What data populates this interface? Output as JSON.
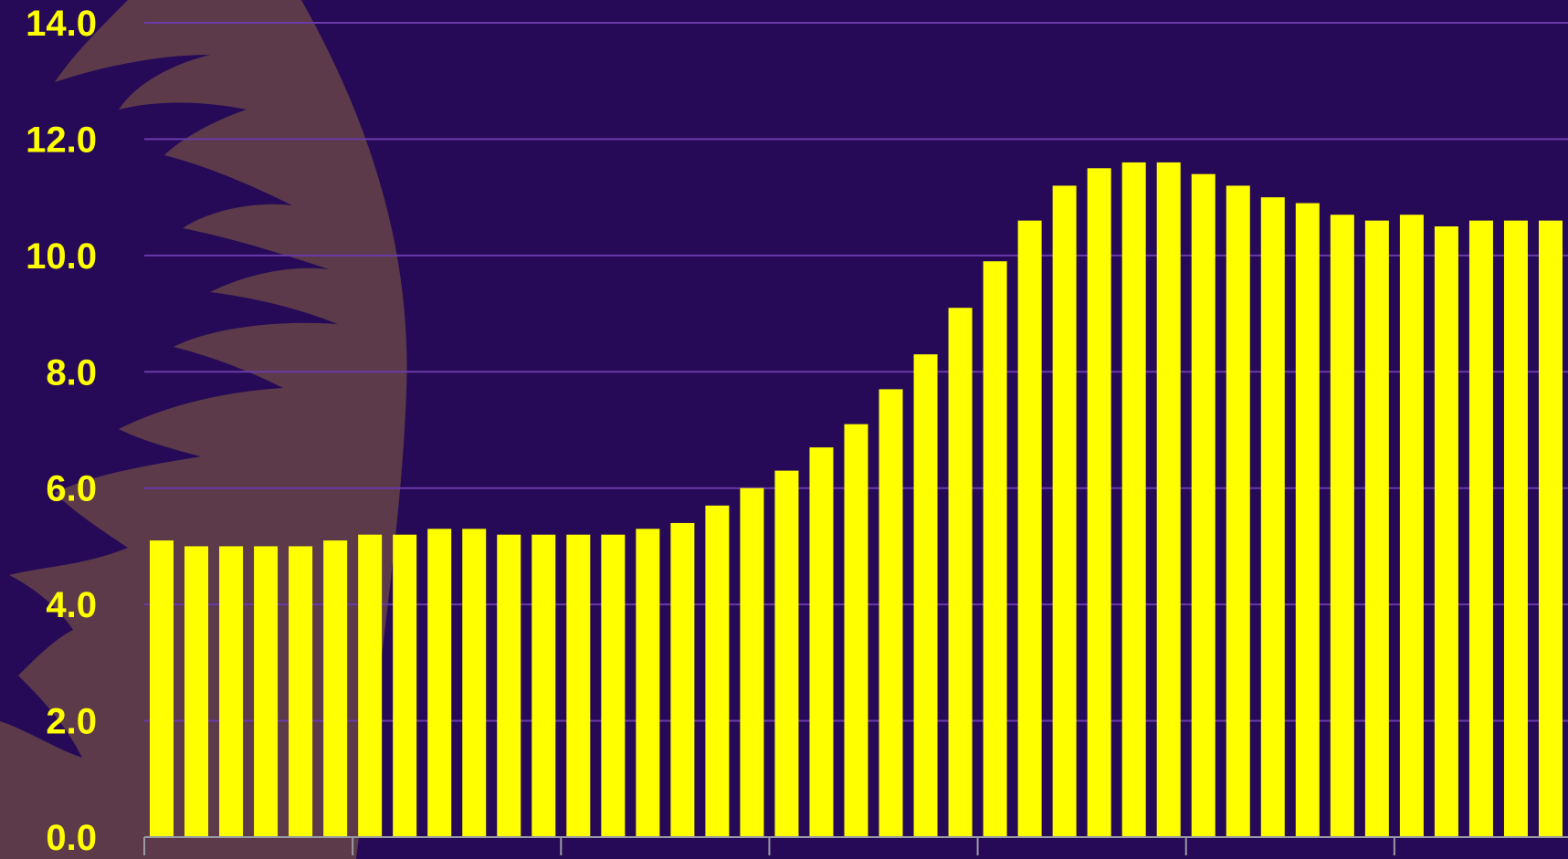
{
  "chart_data": {
    "type": "bar",
    "title": "",
    "xlabel": "",
    "ylabel": "",
    "ylim": [
      0,
      14
    ],
    "y_ticks": [
      "0.0",
      "2.0",
      "4.0",
      "6.0",
      "8.0",
      "10.0",
      "12.0",
      "14.0"
    ],
    "grid": true,
    "x_tick_every": 6,
    "values": [
      5.1,
      5.0,
      5.0,
      5.0,
      5.0,
      5.1,
      5.2,
      5.2,
      5.3,
      5.3,
      5.2,
      5.2,
      5.2,
      5.2,
      5.3,
      5.4,
      5.7,
      6.0,
      6.3,
      6.7,
      7.1,
      7.7,
      8.3,
      9.1,
      9.9,
      10.6,
      11.2,
      11.5,
      11.6,
      11.6,
      11.4,
      11.2,
      11.0,
      10.9,
      10.7,
      10.6,
      10.7,
      10.5,
      10.6,
      10.6,
      10.6
    ]
  },
  "colors": {
    "background": "#260a58",
    "bar": "#ffff00",
    "tick_label": "#ffff00",
    "gridline": "#6a3aa8",
    "axis": "#9a9aa6",
    "watermark": "#5c3a4a"
  },
  "watermark": {
    "icon": "stylized-leaf-emblem"
  }
}
